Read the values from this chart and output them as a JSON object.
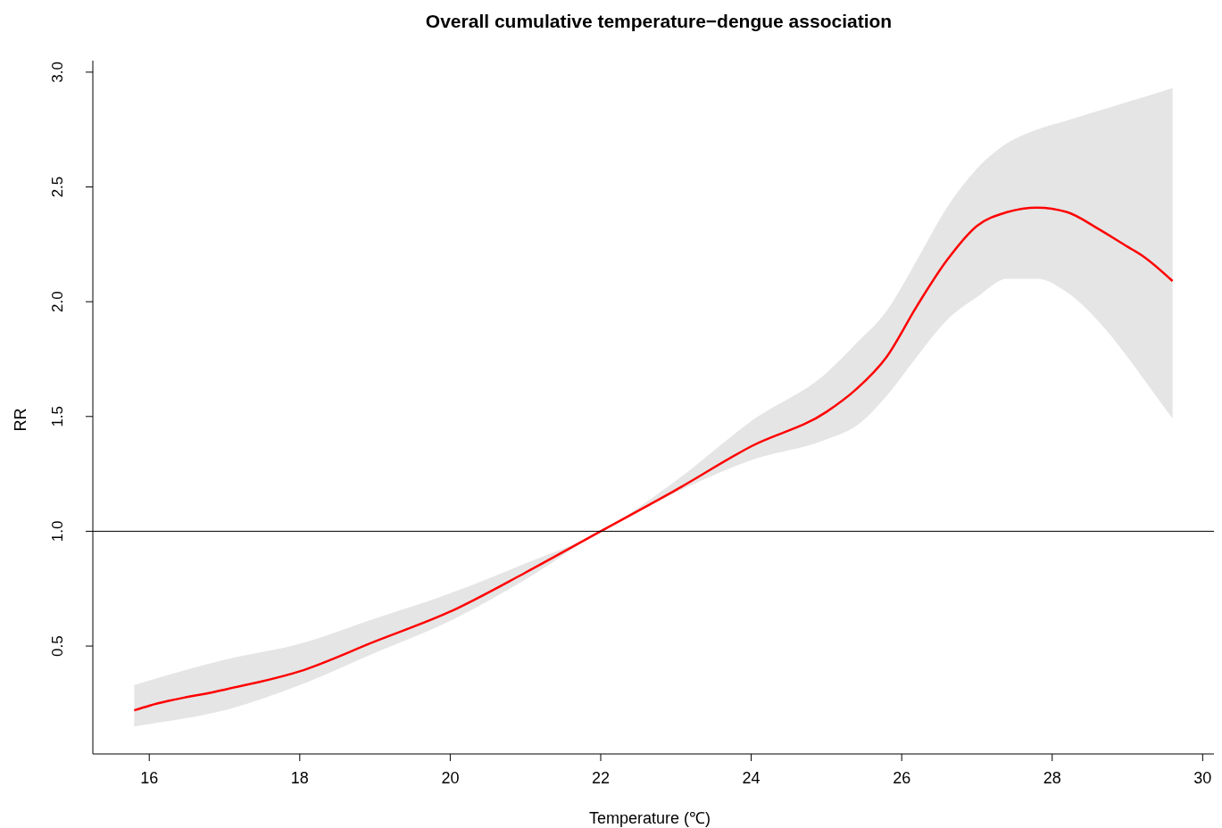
{
  "chart_data": {
    "type": "line",
    "title": "Overall cumulative temperature−dengue association",
    "xlabel": "Temperature (℃)",
    "ylabel": "RR",
    "x": [
      15.8,
      16,
      17,
      18,
      19,
      20,
      21,
      22,
      23,
      24,
      25,
      25.4,
      25.8,
      26.2,
      26.6,
      27,
      27.4,
      27.8,
      28.2,
      28.6,
      29,
      29.2,
      29.6
    ],
    "series": [
      {
        "color": "#ff0000",
        "values": [
          0.22,
          0.24,
          0.31,
          0.39,
          0.52,
          0.65,
          0.82,
          1.0,
          1.18,
          1.37,
          1.52,
          1.62,
          1.76,
          1.98,
          2.18,
          2.33,
          2.39,
          2.41,
          2.39,
          2.32,
          2.24,
          2.2,
          2.09
        ],
        "lower": [
          0.15,
          0.16,
          0.22,
          0.33,
          0.47,
          0.61,
          0.79,
          1.0,
          1.17,
          1.31,
          1.4,
          1.46,
          1.59,
          1.76,
          1.92,
          2.02,
          2.1,
          2.1,
          2.04,
          1.92,
          1.76,
          1.67,
          1.49
        ],
        "upper": [
          0.33,
          0.35,
          0.44,
          0.51,
          0.62,
          0.73,
          0.86,
          1.0,
          1.22,
          1.48,
          1.69,
          1.82,
          1.96,
          2.18,
          2.41,
          2.58,
          2.69,
          2.75,
          2.79,
          2.83,
          2.87,
          2.89,
          2.93
        ]
      }
    ],
    "xlim": [
      15.25,
      30.15
    ],
    "xticks": [
      16,
      18,
      20,
      22,
      24,
      26,
      28,
      30
    ],
    "ylim": [
      0.03,
      3.05
    ],
    "yticks": [
      {
        "value": 0.5,
        "label": "0.5"
      },
      {
        "value": 1,
        "label": "1.0"
      },
      {
        "value": 1.5,
        "label": "1.5"
      },
      {
        "value": 2,
        "label": "2.0"
      },
      {
        "value": 2.5,
        "label": "2.5"
      },
      {
        "value": 3,
        "label": "3.0"
      }
    ],
    "ref_lines": [
      {
        "axis": "y",
        "value": 1,
        "color": "#000000"
      }
    ],
    "grid": false,
    "legend": false,
    "marker": "none",
    "line_style": "solid"
  }
}
